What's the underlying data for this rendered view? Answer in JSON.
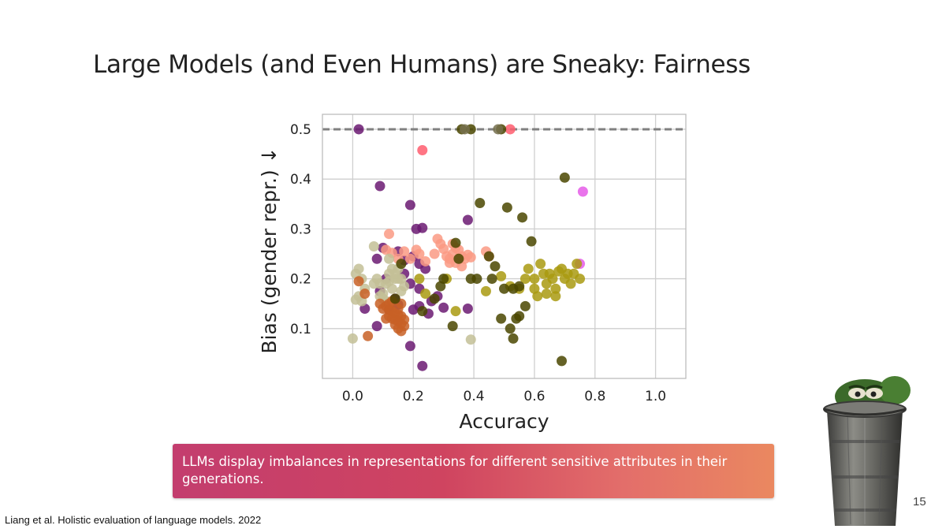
{
  "slide": {
    "title": "Large Models (and Even Humans) are Sneaky: Fairness",
    "callout": "LLMs display imbalances in representations for different sensitive attributes in their generations.",
    "citation": "Liang et al. Holistic evaluation of language models. 2022",
    "page_number": "15",
    "mascot_icon": "oscar-trash-can-icon"
  },
  "chart_data": {
    "type": "scatter",
    "xlabel": "Accuracy",
    "ylabel": "Bias (gender repr.) ↓",
    "xlim": [
      -0.1,
      1.1
    ],
    "ylim": [
      0.0,
      0.53
    ],
    "xticks": [
      0.0,
      0.2,
      0.4,
      0.6,
      0.8,
      1.0
    ],
    "xtick_labels": [
      "0.0",
      "0.2",
      "0.4",
      "0.6",
      "0.8",
      "1.0"
    ],
    "yticks": [
      0.1,
      0.2,
      0.3,
      0.4,
      0.5
    ],
    "ytick_labels": [
      "0.1",
      "0.2",
      "0.3",
      "0.4",
      "0.5"
    ],
    "grid": true,
    "reference_line": {
      "y": 0.5,
      "style": "dashed",
      "color": "#808080"
    },
    "series": [
      {
        "color": "#6b1a72",
        "points": [
          [
            0.02,
            0.5
          ],
          [
            0.09,
            0.386
          ],
          [
            0.19,
            0.348
          ],
          [
            0.21,
            0.3
          ],
          [
            0.23,
            0.302
          ],
          [
            0.38,
            0.318
          ],
          [
            0.1,
            0.262
          ],
          [
            0.08,
            0.24
          ],
          [
            0.15,
            0.255
          ],
          [
            0.2,
            0.245
          ],
          [
            0.17,
            0.237
          ],
          [
            0.22,
            0.23
          ],
          [
            0.24,
            0.22
          ],
          [
            0.17,
            0.21
          ],
          [
            0.11,
            0.2
          ],
          [
            0.19,
            0.19
          ],
          [
            0.22,
            0.18
          ],
          [
            0.28,
            0.165
          ],
          [
            0.26,
            0.155
          ],
          [
            0.15,
            0.148
          ],
          [
            0.22,
            0.145
          ],
          [
            0.3,
            0.142
          ],
          [
            0.38,
            0.14
          ],
          [
            0.04,
            0.14
          ],
          [
            0.12,
            0.138
          ],
          [
            0.2,
            0.138
          ],
          [
            0.08,
            0.105
          ],
          [
            0.19,
            0.065
          ],
          [
            0.23,
            0.025
          ],
          [
            0.25,
            0.13
          ],
          [
            0.14,
            0.16
          ],
          [
            0.09,
            0.175
          ]
        ]
      },
      {
        "color": "#ff5d6e",
        "points": [
          [
            0.52,
            0.5
          ],
          [
            0.23,
            0.458
          ]
        ]
      },
      {
        "color": "#e55ce8",
        "points": [
          [
            0.76,
            0.375
          ],
          [
            0.75,
            0.23
          ]
        ]
      },
      {
        "color": "#fa9a84",
        "points": [
          [
            0.12,
            0.29
          ],
          [
            0.11,
            0.258
          ],
          [
            0.13,
            0.252
          ],
          [
            0.17,
            0.255
          ],
          [
            0.21,
            0.258
          ],
          [
            0.22,
            0.25
          ],
          [
            0.24,
            0.235
          ],
          [
            0.28,
            0.28
          ],
          [
            0.29,
            0.27
          ],
          [
            0.3,
            0.26
          ],
          [
            0.31,
            0.245
          ],
          [
            0.32,
            0.24
          ],
          [
            0.33,
            0.25
          ],
          [
            0.34,
            0.262
          ],
          [
            0.35,
            0.258
          ],
          [
            0.36,
            0.245
          ],
          [
            0.37,
            0.24
          ],
          [
            0.38,
            0.248
          ],
          [
            0.32,
            0.232
          ],
          [
            0.34,
            0.232
          ],
          [
            0.36,
            0.225
          ],
          [
            0.39,
            0.243
          ],
          [
            0.44,
            0.255
          ],
          [
            0.45,
            0.245
          ],
          [
            0.27,
            0.25
          ],
          [
            0.33,
            0.27
          ],
          [
            0.19,
            0.24
          ],
          [
            0.15,
            0.24
          ]
        ]
      },
      {
        "color": "#c3bf96",
        "points": [
          [
            0.0,
            0.08
          ],
          [
            0.02,
            0.22
          ],
          [
            0.01,
            0.21
          ],
          [
            0.03,
            0.2
          ],
          [
            0.04,
            0.18
          ],
          [
            0.02,
            0.165
          ],
          [
            0.01,
            0.158
          ],
          [
            0.03,
            0.155
          ],
          [
            0.07,
            0.265
          ],
          [
            0.08,
            0.2
          ],
          [
            0.07,
            0.19
          ],
          [
            0.09,
            0.19
          ],
          [
            0.1,
            0.17
          ],
          [
            0.12,
            0.24
          ],
          [
            0.13,
            0.22
          ],
          [
            0.12,
            0.21
          ],
          [
            0.14,
            0.2
          ],
          [
            0.11,
            0.19
          ],
          [
            0.13,
            0.18
          ],
          [
            0.15,
            0.22
          ],
          [
            0.16,
            0.2
          ],
          [
            0.17,
            0.185
          ],
          [
            0.09,
            0.165
          ],
          [
            0.1,
            0.16
          ],
          [
            0.11,
            0.155
          ],
          [
            0.15,
            0.2
          ],
          [
            0.39,
            0.078
          ],
          [
            0.14,
            0.21
          ],
          [
            0.12,
            0.195
          ],
          [
            0.16,
            0.175
          ]
        ]
      },
      {
        "color": "#c86026",
        "points": [
          [
            0.02,
            0.195
          ],
          [
            0.04,
            0.17
          ],
          [
            0.09,
            0.15
          ],
          [
            0.1,
            0.14
          ],
          [
            0.11,
            0.145
          ],
          [
            0.12,
            0.138
          ],
          [
            0.13,
            0.135
          ],
          [
            0.14,
            0.13
          ],
          [
            0.15,
            0.128
          ],
          [
            0.16,
            0.125
          ],
          [
            0.12,
            0.125
          ],
          [
            0.13,
            0.12
          ],
          [
            0.14,
            0.118
          ],
          [
            0.15,
            0.115
          ],
          [
            0.16,
            0.11
          ],
          [
            0.17,
            0.105
          ],
          [
            0.14,
            0.108
          ],
          [
            0.15,
            0.1
          ],
          [
            0.16,
            0.095
          ],
          [
            0.11,
            0.12
          ],
          [
            0.16,
            0.15
          ],
          [
            0.13,
            0.155
          ],
          [
            0.17,
            0.118
          ],
          [
            0.05,
            0.085
          ],
          [
            0.15,
            0.14
          ],
          [
            0.12,
            0.15
          ]
        ]
      },
      {
        "color": "#a99a10",
        "points": [
          [
            0.22,
            0.2
          ],
          [
            0.24,
            0.17
          ],
          [
            0.34,
            0.135
          ],
          [
            0.44,
            0.175
          ],
          [
            0.49,
            0.205
          ],
          [
            0.52,
            0.185
          ],
          [
            0.55,
            0.18
          ],
          [
            0.57,
            0.2
          ],
          [
            0.58,
            0.22
          ],
          [
            0.6,
            0.2
          ],
          [
            0.62,
            0.23
          ],
          [
            0.63,
            0.21
          ],
          [
            0.64,
            0.19
          ],
          [
            0.65,
            0.21
          ],
          [
            0.66,
            0.2
          ],
          [
            0.67,
            0.18
          ],
          [
            0.68,
            0.215
          ],
          [
            0.69,
            0.22
          ],
          [
            0.7,
            0.2
          ],
          [
            0.71,
            0.21
          ],
          [
            0.72,
            0.19
          ],
          [
            0.73,
            0.21
          ],
          [
            0.74,
            0.23
          ],
          [
            0.75,
            0.2
          ],
          [
            0.61,
            0.165
          ],
          [
            0.64,
            0.17
          ],
          [
            0.67,
            0.165
          ],
          [
            0.6,
            0.18
          ],
          [
            0.31,
            0.2
          ]
        ]
      },
      {
        "color": "#4a4600",
        "points": [
          [
            0.36,
            0.5
          ],
          [
            0.39,
            0.5
          ],
          [
            0.49,
            0.5
          ],
          [
            0.42,
            0.352
          ],
          [
            0.51,
            0.343
          ],
          [
            0.56,
            0.323
          ],
          [
            0.59,
            0.275
          ],
          [
            0.7,
            0.403
          ],
          [
            0.34,
            0.272
          ],
          [
            0.35,
            0.24
          ],
          [
            0.45,
            0.245
          ],
          [
            0.47,
            0.225
          ],
          [
            0.41,
            0.2
          ],
          [
            0.5,
            0.18
          ],
          [
            0.53,
            0.18
          ],
          [
            0.55,
            0.185
          ],
          [
            0.57,
            0.145
          ],
          [
            0.49,
            0.12
          ],
          [
            0.52,
            0.1
          ],
          [
            0.53,
            0.08
          ],
          [
            0.54,
            0.12
          ],
          [
            0.69,
            0.035
          ],
          [
            0.33,
            0.105
          ],
          [
            0.29,
            0.185
          ],
          [
            0.3,
            0.2
          ],
          [
            0.27,
            0.16
          ],
          [
            0.23,
            0.135
          ],
          [
            0.14,
            0.16
          ],
          [
            0.16,
            0.23
          ],
          [
            0.39,
            0.2
          ],
          [
            0.46,
            0.2
          ],
          [
            0.55,
            0.125
          ]
        ]
      },
      {
        "color": "#75704e",
        "points": [
          [
            0.37,
            0.5
          ],
          [
            0.48,
            0.5
          ]
        ]
      }
    ]
  }
}
